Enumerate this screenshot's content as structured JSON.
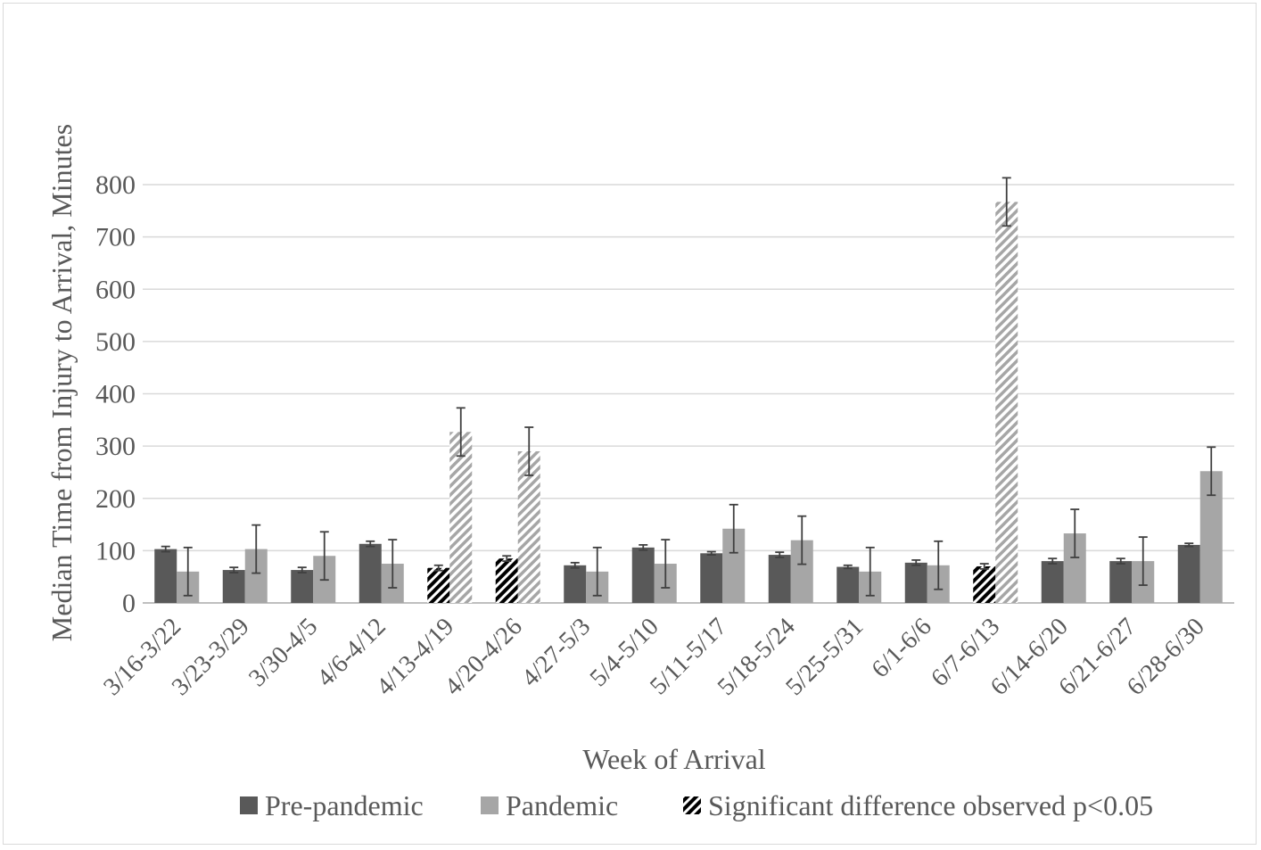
{
  "chart_data": {
    "type": "bar",
    "title": "",
    "xlabel": "Week of Arrival",
    "ylabel": "Median Time  from Injury to Arrival, Minutes",
    "ylim": [
      0,
      800
    ],
    "yticks": [
      "0",
      "100",
      "200",
      "300",
      "400",
      "500",
      "600",
      "700",
      "800"
    ],
    "grid": true,
    "legend_position": "bottom",
    "categories": [
      "3/16-3/22",
      "3/23-3/29",
      "3/30-4/5",
      "4/6-4/12",
      "4/13-4/19",
      "4/20-4/26",
      "4/27-5/3",
      "5/4-5/10",
      "5/11-5/17",
      "5/18-5/24",
      "5/25-5/31",
      "6/1-6/6",
      "6/7-6/13",
      "6/14-6/20",
      "6/21-6/27",
      "6/28-6/30"
    ],
    "series": [
      {
        "name": "Pre-pandemic",
        "color": "#595959",
        "values": [
          103,
          63,
          63,
          113,
          67,
          85,
          72,
          106,
          95,
          92,
          69,
          77,
          70,
          80,
          80,
          111
        ],
        "error": [
          5,
          5,
          5,
          5,
          5,
          5,
          5,
          5,
          3,
          5,
          3,
          5,
          5,
          5,
          5,
          3
        ]
      },
      {
        "name": "Pandemic",
        "color": "#a6a6a6",
        "values": [
          60,
          103,
          90,
          75,
          327,
          290,
          60,
          75,
          142,
          120,
          60,
          72,
          767,
          133,
          80,
          252
        ],
        "error": [
          46,
          46,
          46,
          46,
          46,
          46,
          46,
          46,
          46,
          46,
          46,
          46,
          46,
          46,
          46,
          46
        ]
      }
    ],
    "significant_categories": [
      "4/13-4/19",
      "4/20-4/26",
      "6/7-6/13"
    ],
    "legend": [
      "Pre-pandemic",
      "Pandemic",
      "Significant difference observed p<0.05"
    ]
  }
}
